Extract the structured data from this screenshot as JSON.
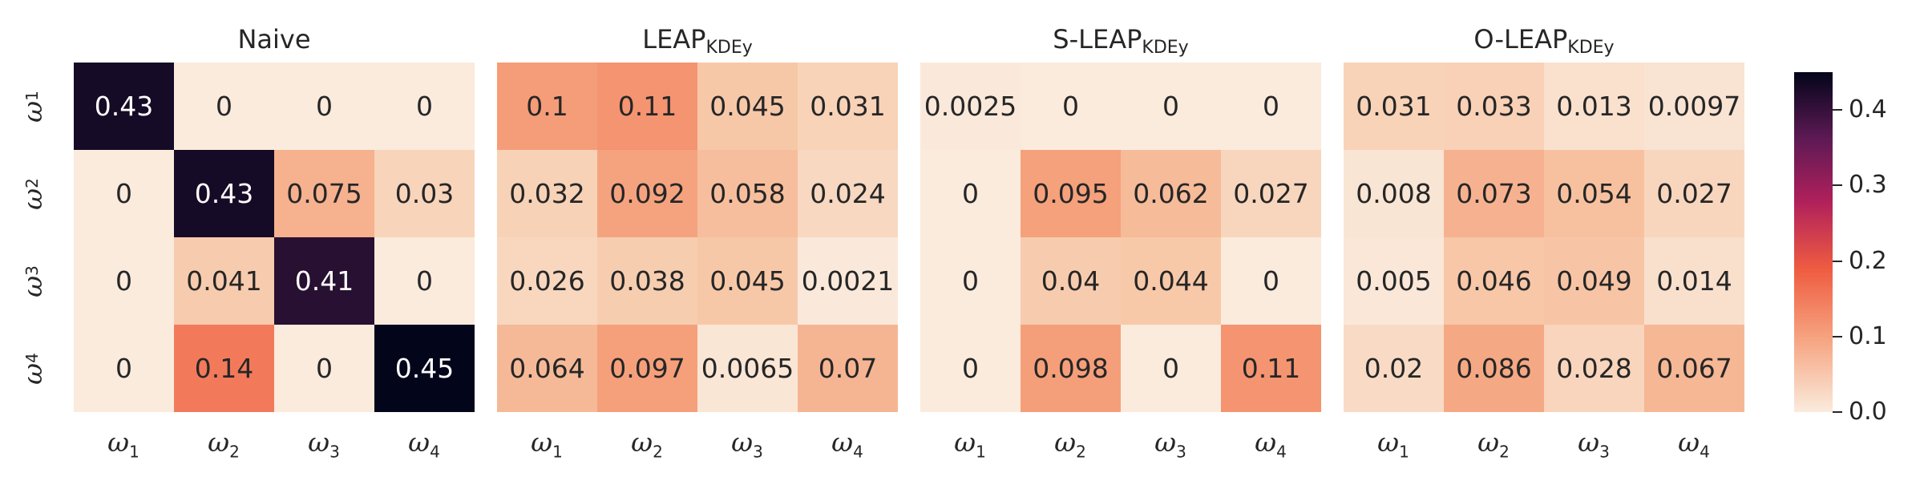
{
  "chart_data": {
    "type": "heatmap",
    "panels": [
      {
        "title_main": "Naive",
        "title_sub": "",
        "values": [
          [
            0.43,
            0,
            0,
            0
          ],
          [
            0,
            0.43,
            0.075,
            0.03
          ],
          [
            0,
            0.041,
            0.41,
            0
          ],
          [
            0,
            0.14,
            0,
            0.45
          ]
        ]
      },
      {
        "title_main": "LEAP",
        "title_sub": "KDEy",
        "values": [
          [
            0.1,
            0.11,
            0.045,
            0.031
          ],
          [
            0.032,
            0.092,
            0.058,
            0.024
          ],
          [
            0.026,
            0.038,
            0.045,
            0.0021
          ],
          [
            0.064,
            0.097,
            0.0065,
            0.07
          ]
        ]
      },
      {
        "title_main": "S-LEAP",
        "title_sub": "KDEy",
        "values": [
          [
            0.0025,
            0,
            0,
            0
          ],
          [
            0,
            0.095,
            0.062,
            0.027
          ],
          [
            0,
            0.04,
            0.044,
            0
          ],
          [
            0,
            0.098,
            0,
            0.11
          ]
        ]
      },
      {
        "title_main": "O-LEAP",
        "title_sub": "KDEy",
        "values": [
          [
            0.031,
            0.033,
            0.013,
            0.0097
          ],
          [
            0.008,
            0.073,
            0.054,
            0.027
          ],
          [
            0.005,
            0.046,
            0.049,
            0.014
          ],
          [
            0.02,
            0.086,
            0.028,
            0.067
          ]
        ]
      }
    ],
    "x_labels": [
      {
        "symbol": "ω",
        "sub": "1"
      },
      {
        "symbol": "ω",
        "sub": "2"
      },
      {
        "symbol": "ω",
        "sub": "3"
      },
      {
        "symbol": "ω",
        "sub": "4"
      }
    ],
    "y_labels": [
      {
        "symbol": "ω",
        "sub": "1"
      },
      {
        "symbol": "ω",
        "sub": "2"
      },
      {
        "symbol": "ω",
        "sub": "3"
      },
      {
        "symbol": "ω",
        "sub": "4"
      }
    ],
    "colorbar": {
      "range": [
        0,
        0.45
      ],
      "ticks": [
        "0.0",
        "0.1",
        "0.2",
        "0.3",
        "0.4"
      ],
      "colormap": "rocket_r"
    }
  }
}
